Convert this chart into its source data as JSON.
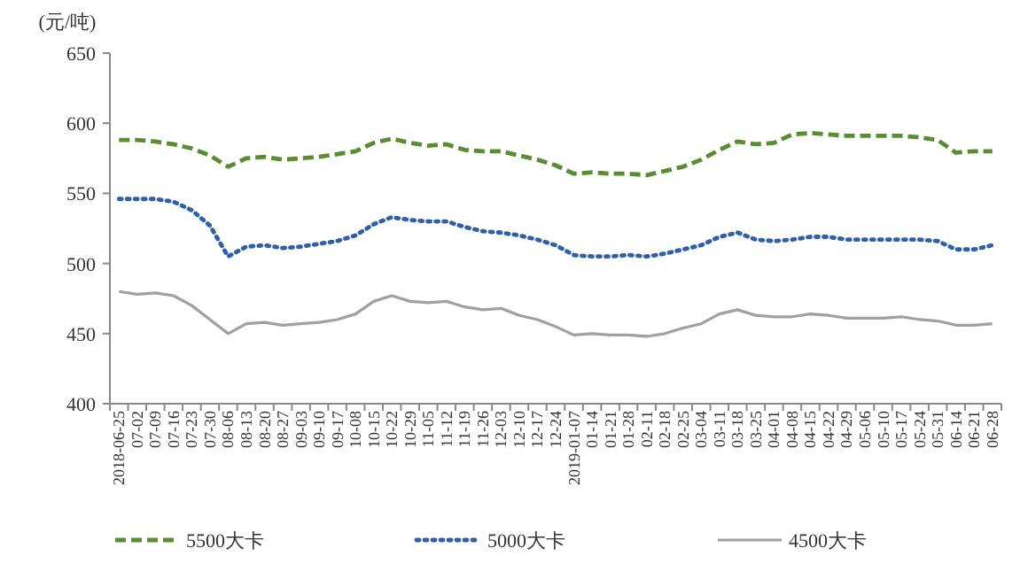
{
  "chart_data": {
    "type": "line",
    "ylabel": "(元/吨)",
    "categories": [
      "2018-06-25",
      "07-02",
      "07-09",
      "07-16",
      "07-23",
      "07-30",
      "08-06",
      "08-13",
      "08-20",
      "08-27",
      "09-03",
      "09-10",
      "09-17",
      "10-08",
      "10-15",
      "10-22",
      "10-29",
      "11-05",
      "11-12",
      "11-19",
      "11-26",
      "12-03",
      "12-10",
      "12-17",
      "12-24",
      "2019-01-07",
      "01-14",
      "01-21",
      "01-28",
      "02-11",
      "02-18",
      "02-25",
      "03-04",
      "03-11",
      "03-18",
      "03-25",
      "04-01",
      "04-08",
      "04-15",
      "04-22",
      "04-29",
      "05-06",
      "05-10",
      "05-17",
      "05-24",
      "05-31",
      "06-14",
      "06-21",
      "06-28"
    ],
    "series": [
      {
        "name": "5500大卡",
        "color": "#5b8c32",
        "line_style": "dashed",
        "values": [
          588,
          588,
          587,
          585,
          582,
          577,
          569,
          575,
          576,
          574,
          575,
          576,
          578,
          580,
          586,
          589,
          586,
          584,
          585,
          581,
          580,
          580,
          577,
          574,
          570,
          564,
          565,
          564,
          564,
          563,
          566,
          569,
          574,
          581,
          587,
          585,
          586,
          592,
          593,
          592,
          591,
          591,
          591,
          591,
          590,
          588,
          579,
          580,
          580
        ]
      },
      {
        "name": "5000大卡",
        "color": "#2e5fa8",
        "line_style": "dotted",
        "values": [
          546,
          546,
          546,
          544,
          538,
          527,
          505,
          512,
          513,
          511,
          512,
          514,
          516,
          520,
          528,
          533,
          531,
          530,
          530,
          526,
          523,
          522,
          520,
          517,
          513,
          506,
          505,
          505,
          506,
          505,
          507,
          510,
          513,
          519,
          522,
          517,
          516,
          517,
          519,
          519,
          517,
          517,
          517,
          517,
          517,
          516,
          510,
          510,
          513
        ]
      },
      {
        "name": "4500大卡",
        "color": "#a0a0a0",
        "line_style": "solid",
        "values": [
          480,
          478,
          479,
          477,
          470,
          460,
          450,
          457,
          458,
          456,
          457,
          458,
          460,
          464,
          473,
          477,
          473,
          472,
          473,
          469,
          467,
          468,
          463,
          460,
          455,
          449,
          450,
          449,
          449,
          448,
          450,
          454,
          457,
          464,
          467,
          463,
          462,
          462,
          464,
          463,
          461,
          461,
          461,
          462,
          460,
          459,
          456,
          456,
          457
        ]
      }
    ],
    "ylim": [
      400,
      650
    ],
    "yticks": [
      400,
      450,
      500,
      550,
      600,
      650
    ],
    "grid": false,
    "legend": "bottom",
    "marker": "none"
  }
}
